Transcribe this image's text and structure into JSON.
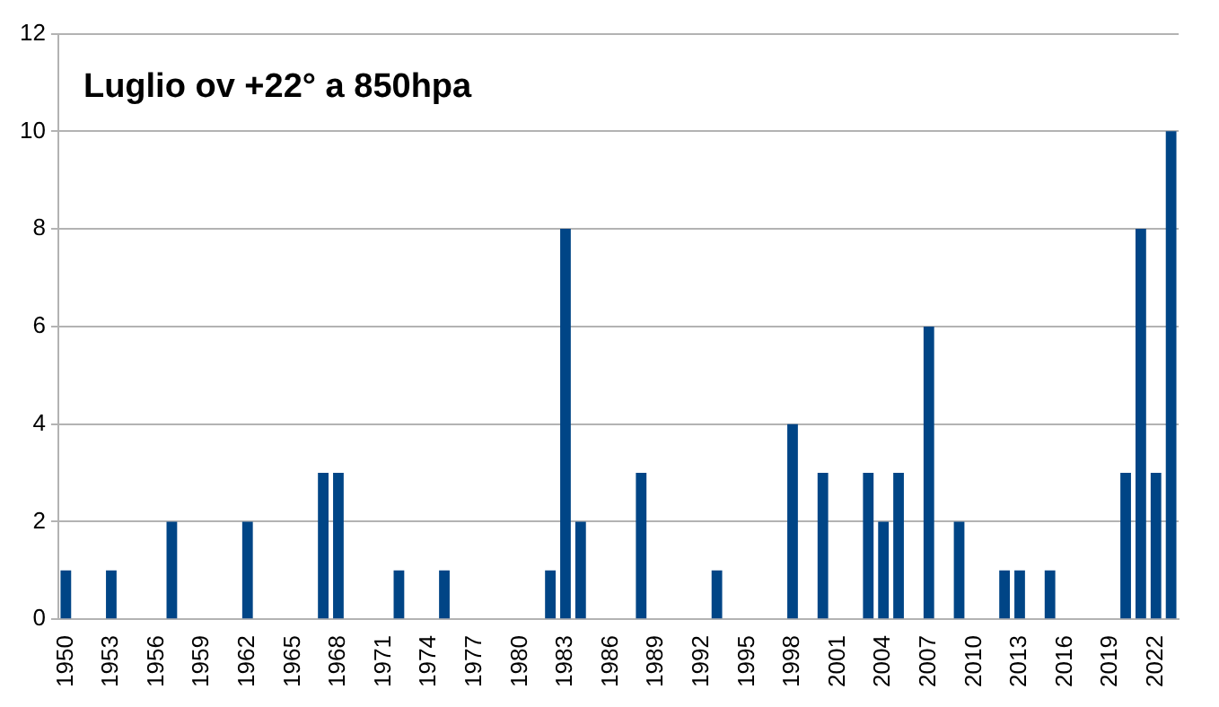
{
  "chart_data": {
    "type": "bar",
    "title": "Luglio ov +22° a 850hpa",
    "categories": [
      "1950",
      null,
      null,
      "1953",
      null,
      null,
      "1956",
      null,
      null,
      "1959",
      null,
      null,
      "1962",
      null,
      null,
      "1965",
      null,
      null,
      "1968",
      null,
      null,
      "1971",
      null,
      null,
      "1974",
      null,
      null,
      "1977",
      null,
      null,
      "1980",
      null,
      null,
      "1983",
      null,
      null,
      "1986",
      null,
      null,
      "1989",
      null,
      null,
      "1992",
      null,
      null,
      "1995",
      null,
      null,
      "1998",
      null,
      null,
      "2001",
      null,
      null,
      "2004",
      null,
      null,
      "2007",
      null,
      null,
      "2010",
      null,
      null,
      "2013",
      null,
      null,
      "2016",
      null,
      null,
      "2019",
      null,
      null,
      "2022",
      null
    ],
    "values": [
      1,
      0,
      0,
      1,
      0,
      0,
      0,
      2,
      0,
      0,
      0,
      0,
      2,
      0,
      0,
      0,
      0,
      3,
      3,
      0,
      0,
      0,
      1,
      0,
      0,
      1,
      0,
      0,
      0,
      0,
      0,
      0,
      1,
      8,
      2,
      0,
      0,
      0,
      3,
      0,
      0,
      0,
      0,
      1,
      0,
      0,
      0,
      0,
      4,
      0,
      3,
      0,
      0,
      3,
      2,
      3,
      0,
      6,
      0,
      2,
      0,
      0,
      1,
      1,
      0,
      1,
      0,
      0,
      0,
      0,
      3,
      8,
      3,
      10
    ],
    "color": "#004586",
    "ylim": [
      0,
      12
    ],
    "yticks": [
      0,
      2,
      4,
      6,
      8,
      10,
      12
    ],
    "grid": "y",
    "legend": false
  }
}
